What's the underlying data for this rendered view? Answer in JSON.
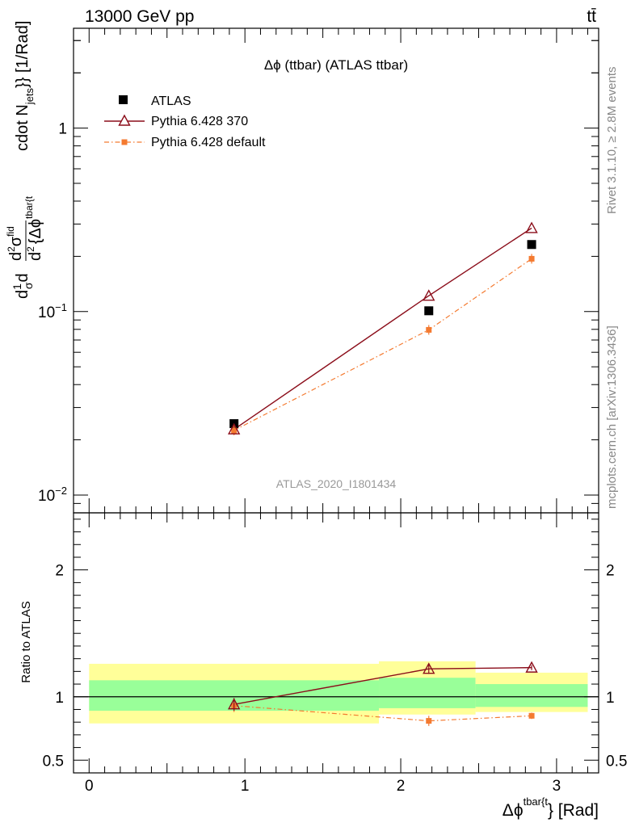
{
  "header": {
    "energy_label": "13000 GeV pp",
    "process_label": "tt̄"
  },
  "side_labels": {
    "rivet": "Rivet 3.1.10, ≥ 2.8M events",
    "mcplots": "mcplots.cern.ch [arXiv:1306.3436]"
  },
  "colors": {
    "atlas": "#000000",
    "pythia370": "#8b0d1a",
    "pythia_default": "#f47a30",
    "band_inner": "#99ff99",
    "band_outer": "#ffff99"
  },
  "chart_data": [
    {
      "type": "scatter",
      "panel": "main",
      "title": "Δϕ (ttbar) (ATLAS ttbar)",
      "ylabel_main": "d",
      "ylabel_sup_sigma": "fid",
      "ylabel_tail": "cdot N",
      "ylabel_jets": "jets",
      "ylabel_unit": "}} [1/Rad]",
      "ylabel_denominator": "d",
      "ylabel_denominator_tail": "{Δϕ",
      "ylabel_denominator_sup": "tbar{t",
      "ylabel_frac_top": "1",
      "ylabel_frac_bottom": "σ",
      "yscale": "log",
      "ylim": [
        0.008,
        3.5
      ],
      "xlim": [
        -0.1,
        3.27
      ],
      "yticks": [
        {
          "value": 1,
          "label": "1"
        },
        {
          "value": 0.1,
          "label": "10",
          "exp": "−1"
        },
        {
          "value": 0.01,
          "label": "10",
          "exp": "−2"
        }
      ],
      "watermark": "ATLAS_2020_I1801434",
      "legend_position": "top-left",
      "series": [
        {
          "name": "ATLAS",
          "marker": "square",
          "x": [
            0.93,
            2.18,
            2.84
          ],
          "y": [
            0.0245,
            0.101,
            0.232
          ]
        },
        {
          "name": "Pythia 6.428 370",
          "marker": "open-triangle",
          "line": "solid",
          "x": [
            0.93,
            2.18,
            2.84
          ],
          "y": [
            0.0228,
            0.122,
            0.285
          ]
        },
        {
          "name": "Pythia 6.428 default",
          "marker": "small-square",
          "line": "dash-dot",
          "x": [
            0.93,
            2.18,
            2.84
          ],
          "y": [
            0.0225,
            0.0795,
            0.194
          ]
        }
      ]
    },
    {
      "type": "line",
      "panel": "ratio",
      "ylabel": "Ratio to ATLAS",
      "ylim": [
        0.4,
        2.45
      ],
      "xlim": [
        -0.1,
        3.27
      ],
      "xticks": [
        {
          "value": 0,
          "label": "0"
        },
        {
          "value": 1,
          "label": "1"
        },
        {
          "value": 2,
          "label": "2"
        },
        {
          "value": 3,
          "label": "3"
        }
      ],
      "yticks": [
        {
          "value": 0.5,
          "label": "0.5"
        },
        {
          "value": 1,
          "label": "1"
        },
        {
          "value": 2,
          "label": "2"
        }
      ],
      "xlabel": "Δϕ",
      "xlabel_sup": "tbar{t",
      "xlabel_tail": "} [Rad]",
      "bands": [
        {
          "x0": 0.0,
          "x1": 1.86,
          "inner": [
            0.89,
            1.13
          ],
          "outer": [
            0.79,
            1.26
          ]
        },
        {
          "x0": 1.86,
          "x1": 2.48,
          "inner": [
            0.91,
            1.15
          ],
          "outer": [
            0.86,
            1.28
          ]
        },
        {
          "x0": 2.48,
          "x1": 3.2,
          "inner": [
            0.92,
            1.1
          ],
          "outer": [
            0.88,
            1.19
          ]
        }
      ],
      "series": [
        {
          "name": "Pythia 6.428 370",
          "marker": "open-triangle",
          "line": "solid",
          "x": [
            0.93,
            2.18,
            2.84
          ],
          "y": [
            0.94,
            1.22,
            1.23
          ],
          "err": [
            0.05,
            0.04,
            0.02
          ]
        },
        {
          "name": "Pythia 6.428 default",
          "marker": "small-square",
          "line": "dash-dot",
          "x": [
            0.93,
            2.18,
            2.84
          ],
          "y": [
            0.93,
            0.81,
            0.85
          ],
          "err": [
            0.05,
            0.04,
            0.025
          ]
        }
      ]
    }
  ]
}
